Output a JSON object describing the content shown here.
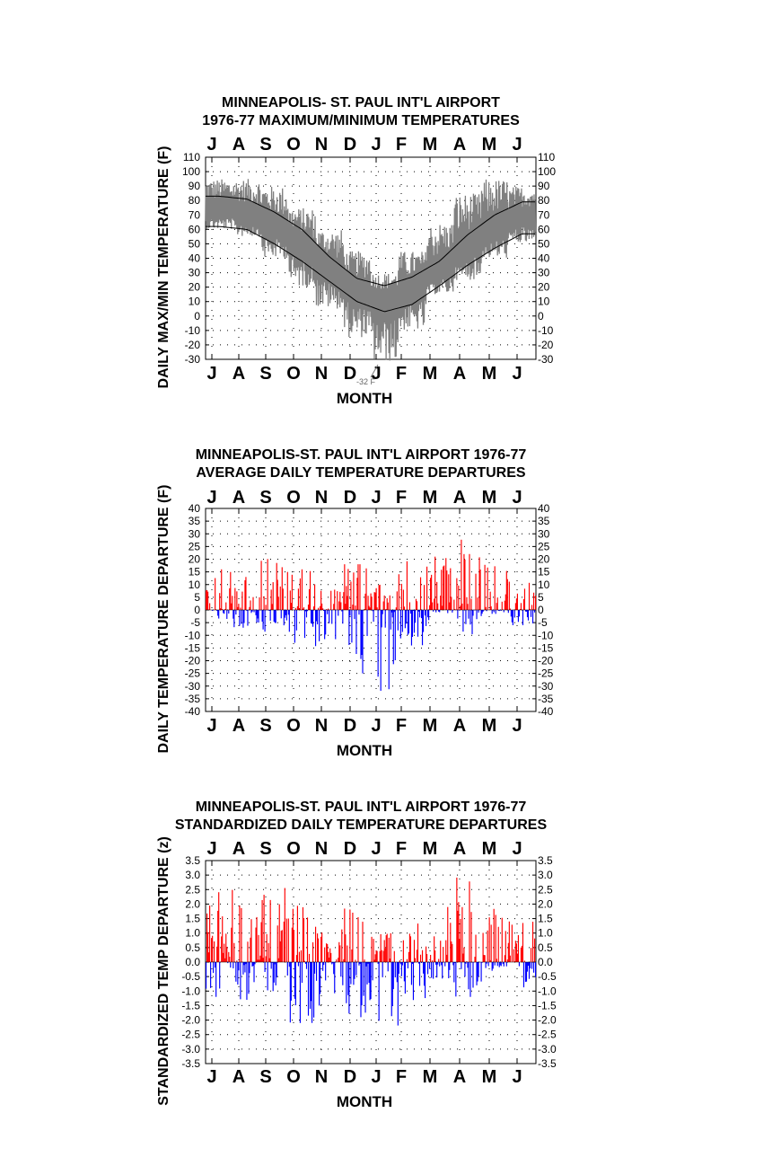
{
  "chart_data": [
    {
      "type": "line",
      "title": "MINNEAPOLIS- ST. PAUL INT'L AIRPORT",
      "subtitle": "1976-77 MAXIMUM/MINIMUM TEMPERATURES",
      "xlabel": "MONTH",
      "ylabel": "DAILY MAX/MIN TEMPERATURE (F)",
      "months": [
        "J",
        "A",
        "S",
        "O",
        "N",
        "D",
        "J",
        "F",
        "M",
        "A",
        "M",
        "J"
      ],
      "yticks": [
        110,
        100,
        90,
        80,
        70,
        60,
        50,
        40,
        30,
        20,
        10,
        0,
        -10,
        -20,
        -30
      ],
      "ylim": [
        -30,
        110
      ],
      "annotation": "-32 F",
      "grid": true,
      "series": [
        {
          "color": "#808080",
          "values_by_month": {
            "J": [
              60,
              95
            ],
            "A": [
              55,
              95
            ],
            "S": [
              40,
              90
            ],
            "O": [
              20,
              75
            ],
            "N": [
              5,
              60
            ],
            "D": [
              -15,
              45
            ],
            "J2": [
              -32,
              30
            ],
            "F": [
              -10,
              45
            ],
            "M": [
              15,
              65
            ],
            "A2": [
              25,
              85
            ],
            "M2": [
              40,
              95
            ],
            "J3": [
              50,
              90
            ]
          }
        },
        {
          "color": "#000000",
          "normal_max_by_month": [
            83,
            81,
            72,
            60,
            41,
            26,
            21,
            27,
            38,
            56,
            70,
            79
          ],
          "normal_min_by_month": [
            62,
            60,
            50,
            38,
            24,
            10,
            3,
            8,
            21,
            35,
            47,
            57
          ]
        }
      ]
    },
    {
      "type": "bar",
      "title": "MINNEAPOLIS-ST. PAUL INT'L AIRPORT 1976-77",
      "subtitle": "AVERAGE DAILY TEMPERATURE DEPARTURES",
      "xlabel": "MONTH",
      "ylabel": "DAILY TEMPERATURE DEPARTURE (F)",
      "months": [
        "J",
        "A",
        "S",
        "O",
        "N",
        "D",
        "J",
        "F",
        "M",
        "A",
        "M",
        "J"
      ],
      "yticks": [
        40,
        35,
        30,
        25,
        20,
        15,
        10,
        5,
        0,
        -5,
        -10,
        -15,
        -20,
        -25,
        -30,
        -35,
        -40
      ],
      "ylim": [
        -40,
        40
      ],
      "grid": true,
      "positive_color": "#ff0000",
      "negative_color": "#0000ff",
      "monthly_range": [
        {
          "month": "J",
          "max": 16,
          "min": -4
        },
        {
          "month": "A",
          "max": 13,
          "min": -7
        },
        {
          "month": "S",
          "max": 21,
          "min": -9
        },
        {
          "month": "O",
          "max": 16,
          "min": -17
        },
        {
          "month": "N",
          "max": 8,
          "min": -13
        },
        {
          "month": "D",
          "max": 18,
          "min": -25
        },
        {
          "month": "J",
          "max": 10,
          "min": -33
        },
        {
          "month": "F",
          "max": 22,
          "min": -14
        },
        {
          "month": "M",
          "max": 21,
          "min": -4
        },
        {
          "month": "A",
          "max": 29,
          "min": -10
        },
        {
          "month": "M",
          "max": 19,
          "min": -2
        },
        {
          "month": "J",
          "max": 12,
          "min": -6
        }
      ]
    },
    {
      "type": "bar",
      "title": "MINNEAPOLIS-ST. PAUL INT'L AIRPORT 1976-77",
      "subtitle": "STANDARDIZED DAILY TEMPERATURE DEPARTURES",
      "xlabel": "MONTH",
      "ylabel": "STANDARDIZED TEMP DEPARTURE (z)",
      "months": [
        "J",
        "A",
        "S",
        "O",
        "N",
        "D",
        "J",
        "F",
        "M",
        "A",
        "M",
        "J"
      ],
      "yticks": [
        "3.5",
        "3.0",
        "2.5",
        "2.0",
        "1.5",
        "1.0",
        "0.5",
        "0.0",
        "-0.5",
        "-1.0",
        "-1.5",
        "-2.0",
        "-2.5",
        "-3.0",
        "-3.5"
      ],
      "ylim": [
        -3.5,
        3.5
      ],
      "grid": true,
      "positive_color": "#ff0000",
      "negative_color": "#0000ff",
      "monthly_range": [
        {
          "month": "J",
          "max": 2.5,
          "min": -1.2
        },
        {
          "month": "A",
          "max": 2.3,
          "min": -1.3
        },
        {
          "month": "S",
          "max": 2.8,
          "min": -1.0
        },
        {
          "month": "O",
          "max": 2.0,
          "min": -2.1
        },
        {
          "month": "N",
          "max": 1.2,
          "min": -1.5
        },
        {
          "month": "D",
          "max": 1.9,
          "min": -1.9
        },
        {
          "month": "J",
          "max": 1.0,
          "min": -2.4
        },
        {
          "month": "F",
          "max": 1.7,
          "min": -1.5
        },
        {
          "month": "M",
          "max": 1.9,
          "min": -0.6
        },
        {
          "month": "A",
          "max": 3.1,
          "min": -1.2
        },
        {
          "month": "M",
          "max": 2.3,
          "min": -0.3
        },
        {
          "month": "J",
          "max": 1.4,
          "min": -0.9
        }
      ]
    }
  ]
}
